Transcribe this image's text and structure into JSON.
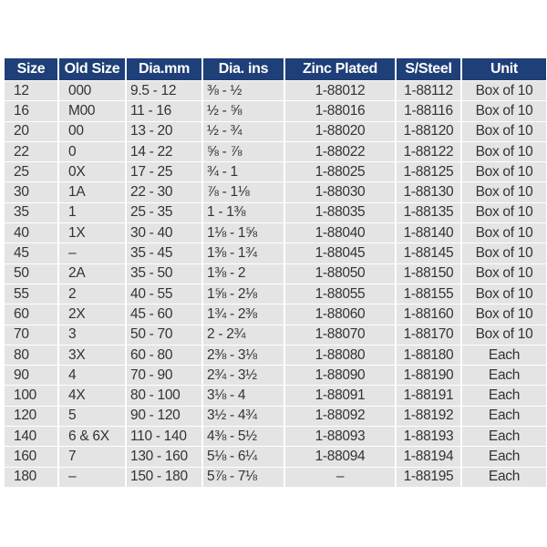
{
  "headers": [
    "Size",
    "Old Size",
    "Dia.mm",
    "Dia. ins",
    "Zinc Plated",
    "S/Steel",
    "Unit"
  ],
  "rows": [
    [
      "12",
      "000",
      "9.5 - 12",
      "⅜ - ½",
      "1-88012",
      "1-88112",
      "Box of 10"
    ],
    [
      "16",
      "M00",
      "11 - 16",
      "½ - ⅝",
      "1-88016",
      "1-88116",
      "Box of 10"
    ],
    [
      "20",
      "00",
      "13 - 20",
      "½ - ¾",
      "1-88020",
      "1-88120",
      "Box of 10"
    ],
    [
      "22",
      "0",
      "14 - 22",
      "⅝ - ⅞",
      "1-88022",
      "1-88122",
      "Box of 10"
    ],
    [
      "25",
      "0X",
      "17 - 25",
      "¾ - 1",
      "1-88025",
      "1-88125",
      "Box of 10"
    ],
    [
      "30",
      "1A",
      "22 - 30",
      "⅞ - 1⅛",
      "1-88030",
      "1-88130",
      "Box of 10"
    ],
    [
      "35",
      "1",
      "25 - 35",
      "1 - 1⅜",
      "1-88035",
      "1-88135",
      "Box of 10"
    ],
    [
      "40",
      "1X",
      "30 - 40",
      "1⅛ - 1⅝",
      "1-88040",
      "1-88140",
      "Box of 10"
    ],
    [
      "45",
      "–",
      "35 - 45",
      "1⅜ - 1¾",
      "1-88045",
      "1-88145",
      "Box of 10"
    ],
    [
      "50",
      "2A",
      "35 - 50",
      "1⅜ - 2",
      "1-88050",
      "1-88150",
      "Box of 10"
    ],
    [
      "55",
      "2",
      "40 - 55",
      "1⅝ - 2⅛",
      "1-88055",
      "1-88155",
      "Box of 10"
    ],
    [
      "60",
      "2X",
      "45 - 60",
      "1¾ - 2⅜",
      "1-88060",
      "1-88160",
      "Box of 10"
    ],
    [
      "70",
      "3",
      "50 - 70",
      "2 - 2¾",
      "1-88070",
      "1-88170",
      "Box of 10"
    ],
    [
      "80",
      "3X",
      "60 - 80",
      "2⅜ - 3⅛",
      "1-88080",
      "1-88180",
      "Each"
    ],
    [
      "90",
      "4",
      "70 - 90",
      "2¾ - 3½",
      "1-88090",
      "1-88190",
      "Each"
    ],
    [
      "100",
      "4X",
      "80 - 100",
      "3⅛ - 4",
      "1-88091",
      "1-88191",
      "Each"
    ],
    [
      "120",
      "5",
      "90 - 120",
      "3½ - 4¾",
      "1-88092",
      "1-88192",
      "Each"
    ],
    [
      "140",
      "6 & 6X",
      "110 - 140",
      "4⅜ - 5½",
      "1-88093",
      "1-88193",
      "Each"
    ],
    [
      "160",
      "7",
      "130 - 160",
      "5⅛ - 6¼",
      "1-88094",
      "1-88194",
      "Each"
    ],
    [
      "180",
      "–",
      "150 - 180",
      "5⅞ - 7⅛",
      "–",
      "1-88195",
      "Each"
    ]
  ],
  "colors": {
    "header_bg": "#1f3f78",
    "row_bg": "#e4e4e4",
    "text": "#333333"
  }
}
